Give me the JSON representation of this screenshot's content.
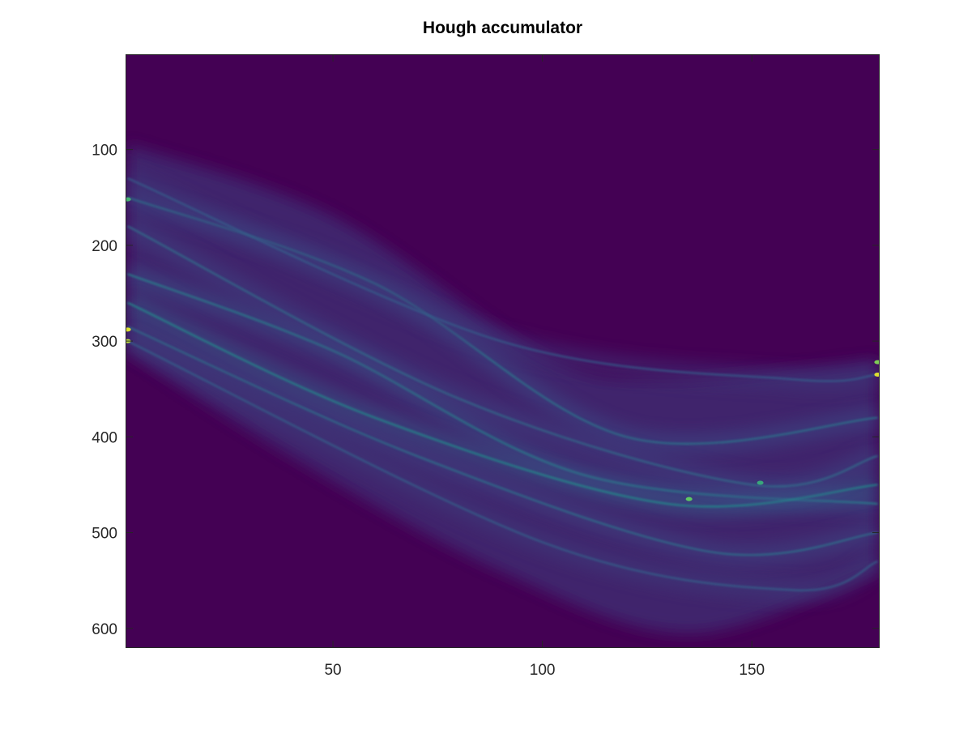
{
  "chart_data": {
    "type": "heatmap",
    "title": "Hough accumulator",
    "xlabel": "",
    "ylabel": "",
    "colormap": "viridis",
    "background_color": "#440154",
    "x_range": [
      0.5,
      180.5
    ],
    "y_range": [
      0.5,
      620.5
    ],
    "y_axis_direction": "reversed",
    "x_ticks": [
      50,
      100,
      150
    ],
    "y_ticks": [
      100,
      200,
      300,
      400,
      500,
      600
    ],
    "grid": false,
    "bands": [
      {
        "upper": [
          [
            1,
            95
          ],
          [
            50,
            170
          ],
          [
            100,
            315
          ],
          [
            130,
            340
          ],
          [
            180,
            320
          ]
        ],
        "lower": [
          [
            1,
            310
          ],
          [
            40,
            420
          ],
          [
            90,
            540
          ],
          [
            135,
            605
          ],
          [
            180,
            540
          ]
        ]
      }
    ],
    "curves": [
      {
        "points": [
          [
            1,
            150
          ],
          [
            60,
            240
          ],
          [
            120,
            400
          ],
          [
            180,
            380
          ]
        ],
        "level": 0.4
      },
      {
        "points": [
          [
            1,
            230
          ],
          [
            50,
            310
          ],
          [
            110,
            440
          ],
          [
            180,
            470
          ]
        ],
        "level": 0.45
      },
      {
        "points": [
          [
            1,
            260
          ],
          [
            60,
            380
          ],
          [
            130,
            470
          ],
          [
            180,
            450
          ]
        ],
        "level": 0.5
      },
      {
        "points": [
          [
            1,
            285
          ],
          [
            70,
            420
          ],
          [
            140,
            520
          ],
          [
            180,
            500
          ]
        ],
        "level": 0.38
      },
      {
        "points": [
          [
            1,
            180
          ],
          [
            80,
            360
          ],
          [
            150,
            450
          ],
          [
            180,
            420
          ]
        ],
        "level": 0.36
      },
      {
        "points": [
          [
            1,
            130
          ],
          [
            90,
            300
          ],
          [
            160,
            340
          ],
          [
            180,
            335
          ]
        ],
        "level": 0.3
      },
      {
        "points": [
          [
            1,
            300
          ],
          [
            100,
            510
          ],
          [
            160,
            560
          ],
          [
            180,
            530
          ]
        ],
        "level": 0.32
      }
    ],
    "peaks": [
      {
        "x": 1,
        "y": 288,
        "level": 0.95
      },
      {
        "x": 1,
        "y": 300,
        "level": 0.9
      },
      {
        "x": 1,
        "y": 152,
        "level": 0.65
      },
      {
        "x": 180,
        "y": 335,
        "level": 0.95
      },
      {
        "x": 180,
        "y": 322,
        "level": 0.8
      },
      {
        "x": 135,
        "y": 465,
        "level": 0.75
      },
      {
        "x": 152,
        "y": 448,
        "level": 0.6
      }
    ]
  }
}
